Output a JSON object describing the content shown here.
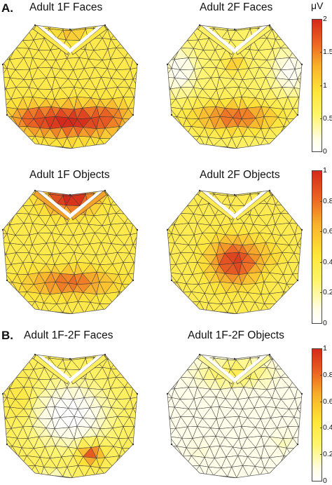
{
  "panels": {
    "a": {
      "letter": "A."
    },
    "b": {
      "letter": "B."
    }
  },
  "maps": [
    {
      "id": "adult-1f-faces",
      "title": "Adult 1F Faces",
      "activity": "occipital-strong"
    },
    {
      "id": "adult-2f-faces",
      "title": "Adult 2F Faces",
      "activity": "occipital-medium"
    },
    {
      "id": "adult-1f-objects",
      "title": "Adult 1F Objects",
      "activity": "frontal-occipital"
    },
    {
      "id": "adult-2f-objects",
      "title": "Adult 2F Objects",
      "activity": "central-occipital"
    },
    {
      "id": "adult-1f-2f-faces",
      "title": "Adult 1F-2F Faces",
      "activity": "diff-faces"
    },
    {
      "id": "adult-1f-2f-objects",
      "title": "Adult 1F-2F Objects",
      "activity": "diff-objects"
    }
  ],
  "colorbars": [
    {
      "id": "colorbar-faces",
      "unit": "μV",
      "ticks": [
        "2",
        "1.5",
        "1",
        "0.5",
        "0"
      ],
      "min": 0,
      "max": 2
    },
    {
      "id": "colorbar-objects",
      "unit": "",
      "ticks": [
        "1",
        "0.8",
        "0.6",
        "0.4",
        "0.2",
        "0"
      ],
      "min": 0,
      "max": 1
    },
    {
      "id": "colorbar-diff",
      "unit": "",
      "ticks": [
        "1",
        "0.8",
        "0.6",
        "0.4",
        "0.2",
        "0"
      ],
      "min": 0,
      "max": 1
    }
  ],
  "colors": {
    "mesh": "#3a3a3a",
    "low": "#fefce6",
    "mid": "#fff04e",
    "high": "#d8301c"
  }
}
